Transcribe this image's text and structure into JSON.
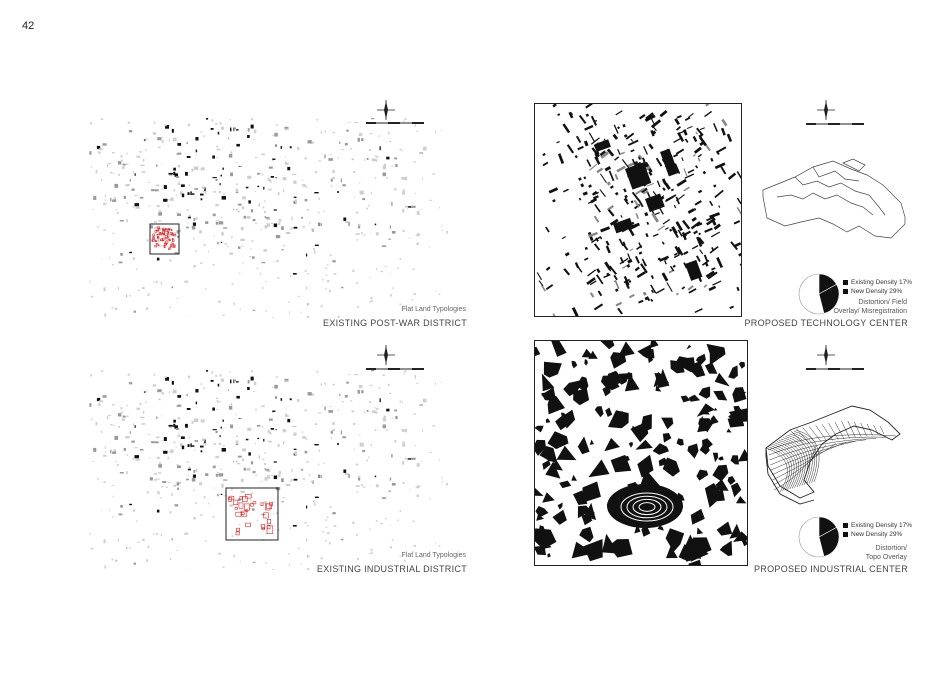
{
  "page_number": "42",
  "panels": {
    "postwar": {
      "subtitle": "Flat Land Typologies",
      "title": "EXISTING POST-WAR DISTRICT"
    },
    "industrial": {
      "subtitle": "Flat Land Typologies",
      "title": "EXISTING INDUSTRIAL DISTRICT"
    },
    "technology": {
      "title": "PROPOSED TECHNOLOGY CENTER",
      "legend_existing": "Existing Density 17%",
      "legend_new": "New Density 29%",
      "note_line1": "Distortion/ Field",
      "note_line2": "Overlay/ Misregistration",
      "existing_density_pct": 17,
      "new_density_pct": 29
    },
    "industrial_center": {
      "title": "PROPOSED INDUSTRIAL CENTER",
      "legend_existing": "Existing Density 17%",
      "legend_new": "New Density 29%",
      "note_line1": "Distortion/",
      "note_line2": "Topo Overlay",
      "existing_density_pct": 17,
      "new_density_pct": 29
    }
  },
  "colors": {
    "ink": "#111111",
    "grey": "#9a9a9a",
    "light": "#cfcfcf",
    "highlight": "#e02020"
  },
  "icons": [
    "north-arrow-icon",
    "scale-bar-icon",
    "density-pie-icon"
  ]
}
